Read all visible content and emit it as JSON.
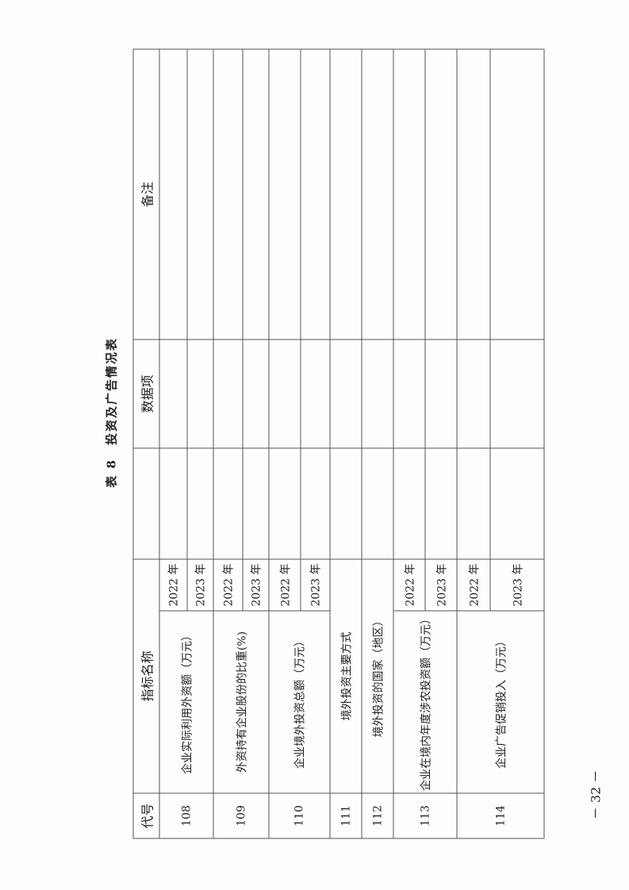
{
  "title": "表 8　投资及广告情况表",
  "headers": {
    "code": "代号",
    "name": "指标名称",
    "data": "数据项",
    "note": "备注"
  },
  "rows": [
    {
      "code": "108",
      "name": "企业实际利用外资额（万元）",
      "years": [
        "2022 年",
        "2023 年"
      ]
    },
    {
      "code": "109",
      "name": "外资持有企业股份的比重(%)",
      "years": [
        "2022 年",
        "2023 年"
      ]
    },
    {
      "code": "110",
      "name": "企业境外投资总额（万元）",
      "years": [
        "2022 年",
        "2023 年"
      ]
    },
    {
      "code": "111",
      "name": "境外投资主要方式"
    },
    {
      "code": "112",
      "name": "境外投资的国家（地区）"
    },
    {
      "code": "113",
      "name": "企业在境内年度涉农投资额（万元）",
      "years": [
        "2022 年",
        "2023 年"
      ]
    },
    {
      "code": "114",
      "name": "企业广告促销投入（万元）",
      "years": [
        "2022 年",
        "2023 年"
      ]
    }
  ],
  "page_number": "－ 32 －"
}
